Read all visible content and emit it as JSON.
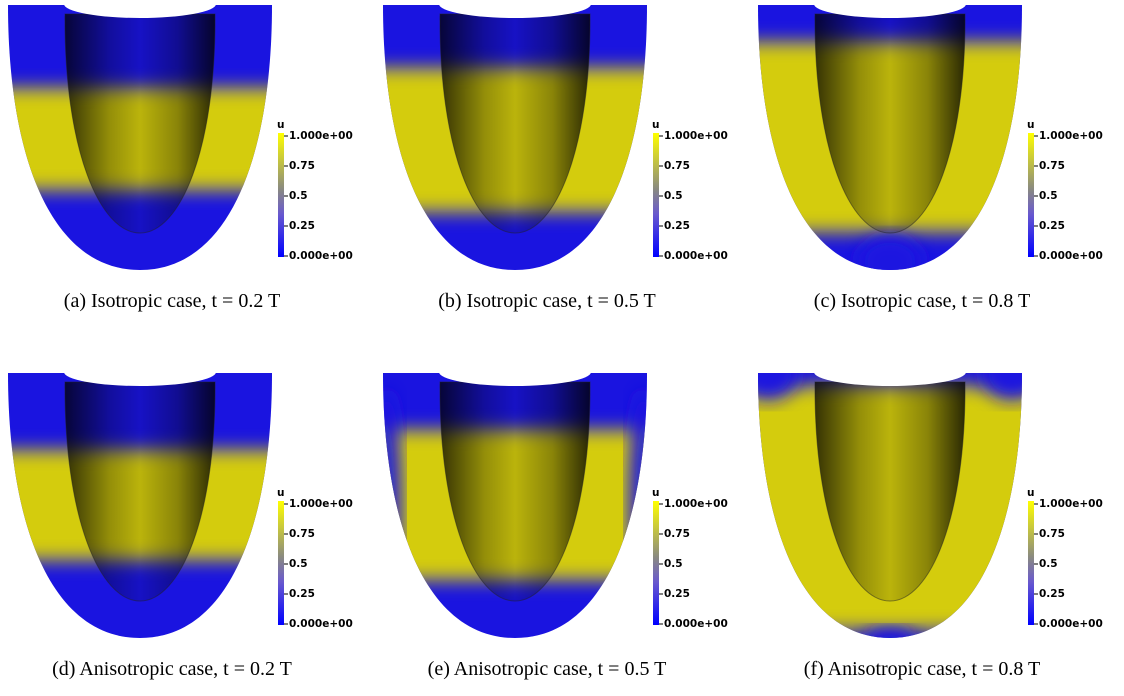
{
  "panels": [
    {
      "caption": "(a) Isotropic case, t = 0.2 T",
      "colorbar": {
        "title": "u",
        "labels": [
          "1.000e+00",
          "0.75",
          "0.5",
          "0.25",
          "0.000e+00"
        ]
      }
    },
    {
      "caption": "(b) Isotropic case, t = 0.5 T",
      "colorbar": {
        "title": "u",
        "labels": [
          "1.000e+00",
          "0.75",
          "0.5",
          "0.25",
          "0.000e+00"
        ]
      }
    },
    {
      "caption": "(c) Isotropic case, t = 0.8 T",
      "colorbar": {
        "title": "u",
        "labels": [
          "1.000e+00",
          "0.75",
          "0.5",
          "0.25",
          "0.000e+00"
        ]
      }
    },
    {
      "caption": "(d) Anisotropic case, t = 0.2 T",
      "colorbar": {
        "title": "u",
        "labels": [
          "1.000e+00",
          "0.75",
          "0.5",
          "0.25",
          "0.000e+00"
        ]
      }
    },
    {
      "caption": "(e) Anisotropic case, t = 0.5 T",
      "colorbar": {
        "title": "u",
        "labels": [
          "1.000e+00",
          "0.75",
          "0.5",
          "0.25",
          "0.000e+00"
        ]
      }
    },
    {
      "caption": "(f) Anisotropic case, t = 0.8 T",
      "colorbar": {
        "title": "u",
        "labels": [
          "1.000e+00",
          "0.75",
          "0.5",
          "0.25",
          "0.000e+00"
        ]
      }
    }
  ]
}
